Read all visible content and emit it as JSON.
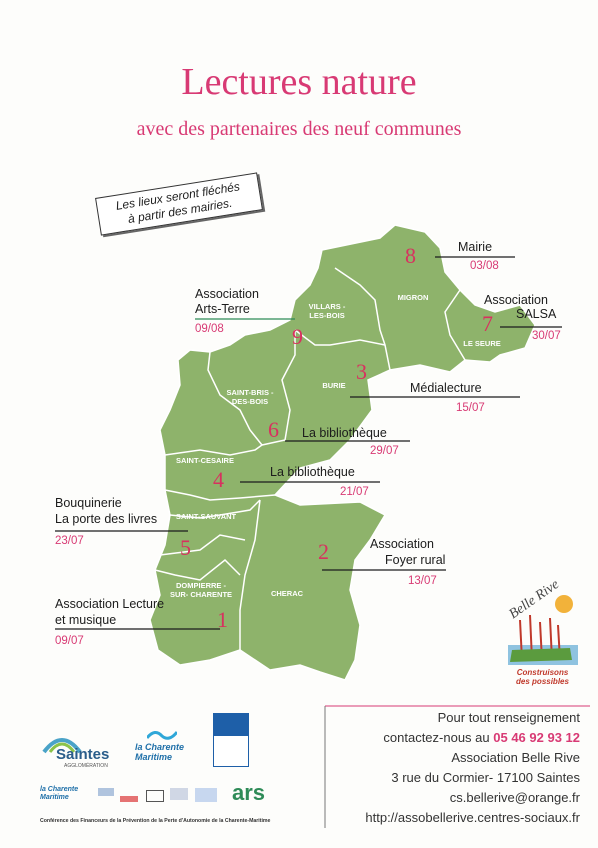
{
  "header": {
    "title": "Lectures nature",
    "subtitle": "avec des partenaires des neuf communes"
  },
  "note": {
    "line1": "Les lieux seront fléchés",
    "line2": "à partir des mairies."
  },
  "communes": {
    "mignon": "MIGRON",
    "villars": "VILLARS -LES-BOIS",
    "seure": "LE SEURE",
    "burie": "BURIE",
    "saintbris": "SAINT-BRIS -DES-BOIS",
    "saintcesaire": "SAINT-CESAIRE",
    "saintsauvant": "SAINT-SAUVANT",
    "dompierre": "DOMPIERRE -SUR- CHARENTE",
    "cherac": "CHERAC"
  },
  "events": [
    {
      "num": "8",
      "label": "Mairie",
      "date": "03/08"
    },
    {
      "num": "9",
      "label1": "Association",
      "label2": "Arts-Terre",
      "date": "09/08"
    },
    {
      "num": "7",
      "label1": "Association",
      "label2": "SALSA",
      "date": "30/07"
    },
    {
      "num": "3",
      "label": "Médialecture",
      "date": "15/07"
    },
    {
      "num": "6",
      "label": "La bibliothèque",
      "date": "29/07"
    },
    {
      "num": "4",
      "label": "La bibliothèque",
      "date": "21/07"
    },
    {
      "num": "5",
      "label1": "Bouquinerie",
      "label2": "La porte des livres",
      "date": "23/07"
    },
    {
      "num": "2",
      "label1": "Association",
      "label2": "Foyer rural",
      "date": "13/07"
    },
    {
      "num": "1",
      "label1": "Association Lecture",
      "label2": "et musique",
      "date": "09/07"
    }
  ],
  "contact": {
    "line1": "Pour tout renseignement",
    "line2a": "contactez-nous au ",
    "phone": "05 46 92 93 12",
    "line3": "Association Belle Rive",
    "line4": "3 rue du Cormier- 17100 Saintes",
    "email": "cs.bellerive@orange.fr",
    "web": "http://assobellerive.centres-sociaux.fr"
  },
  "brand": {
    "name": "Belle Rive",
    "slogan1": "Construisons",
    "slogan2": "des possibles"
  },
  "logos": {
    "saintes": "Saintes",
    "saintes_sub": "AGGLOMÉRATION",
    "charente": "la Charente Maritime",
    "charente_small": "la Charente Maritime",
    "ars": "ars",
    "footer": "Conférence des Financeurs de la Prévention de la Perte d'Autonomie de la Charente-Maritime"
  },
  "colors": {
    "map": "#8eb36b",
    "pink": "#d83a74",
    "green_line": "#2e8b57"
  }
}
